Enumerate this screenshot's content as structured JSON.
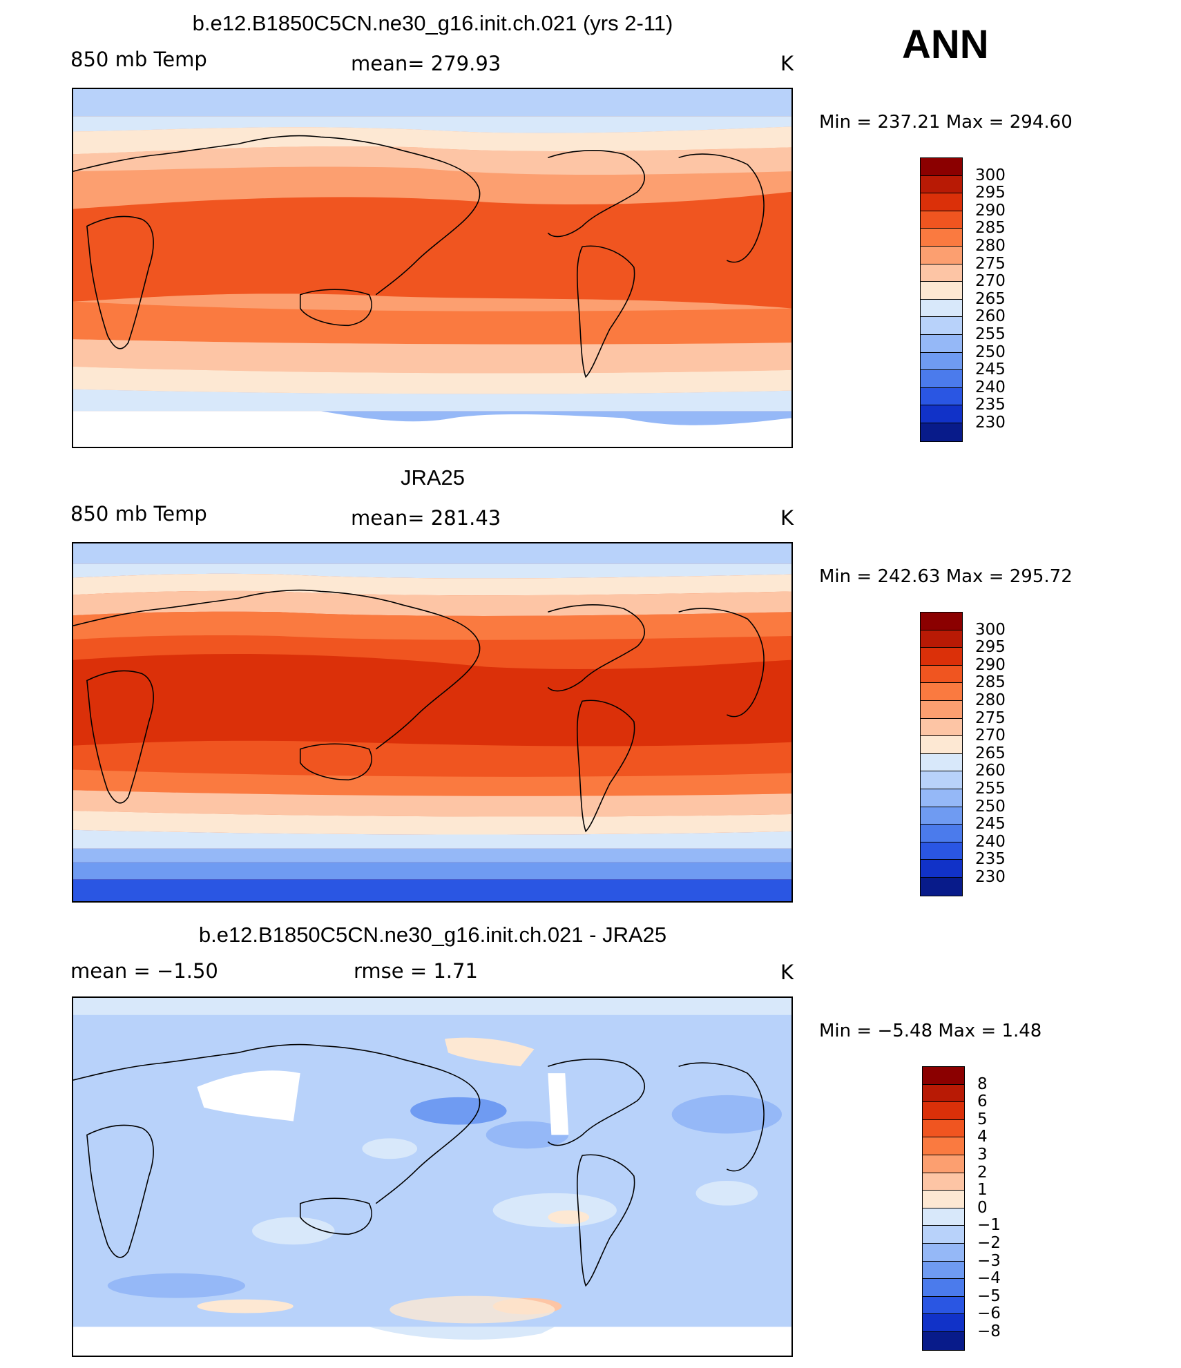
{
  "season": "ANN",
  "units": "K",
  "panels": [
    {
      "id": "model",
      "title": "b.e12.B1850C5CN.ne30_g16.init.ch.021 (yrs 2-11)",
      "left_label": "850 mb Temp",
      "center_label": "mean=  279.93",
      "right_label": "K",
      "min_max": "Min  =  237.21  Max  =  294.60",
      "levels": [
        "300",
        "295",
        "290",
        "285",
        "280",
        "275",
        "270",
        "265",
        "260",
        "255",
        "250",
        "245",
        "240",
        "235",
        "230"
      ],
      "colors": [
        "#8b0000",
        "#b81a05",
        "#db3009",
        "#f05520",
        "#fa7a40",
        "#fc9f70",
        "#fdc5a5",
        "#fde8d3",
        "#d8e8fa",
        "#b8d2fa",
        "#95b8f7",
        "#6f9bf2",
        "#4b7bec",
        "#2a56e3",
        "#1132c8",
        "#081b8a"
      ],
      "stats": {
        "mean": 279.93,
        "min": 237.21,
        "max": 294.6
      }
    },
    {
      "id": "obs",
      "title": "JRA25",
      "left_label": "850 mb Temp",
      "center_label": "mean=  281.43",
      "right_label": "K",
      "min_max": "Min  =  242.63  Max  =  295.72",
      "levels": [
        "300",
        "295",
        "290",
        "285",
        "280",
        "275",
        "270",
        "265",
        "260",
        "255",
        "250",
        "245",
        "240",
        "235",
        "230"
      ],
      "colors": [
        "#8b0000",
        "#b81a05",
        "#db3009",
        "#f05520",
        "#fa7a40",
        "#fc9f70",
        "#fdc5a5",
        "#fde8d3",
        "#d8e8fa",
        "#b8d2fa",
        "#95b8f7",
        "#6f9bf2",
        "#4b7bec",
        "#2a56e3",
        "#1132c8",
        "#081b8a"
      ],
      "stats": {
        "mean": 281.43,
        "min": 242.63,
        "max": 295.72
      }
    },
    {
      "id": "diff",
      "title": "b.e12.B1850C5CN.ne30_g16.init.ch.021 - JRA25",
      "left_label": "mean =    −1.50",
      "center_label": "rmse =     1.71",
      "right_label": "K",
      "min_max": "Min  =    −5.48  Max  =     1.48",
      "levels": [
        "8",
        "6",
        "5",
        "4",
        "3",
        "2",
        "1",
        "0",
        "−1",
        "−2",
        "−3",
        "−4",
        "−5",
        "−6",
        "−8"
      ],
      "colors": [
        "#8b0000",
        "#b81a05",
        "#db3009",
        "#f05520",
        "#fa7a40",
        "#fc9f70",
        "#fdc5a5",
        "#fde8d3",
        "#d8e8fa",
        "#b8d2fa",
        "#95b8f7",
        "#6f9bf2",
        "#4b7bec",
        "#2a56e3",
        "#1132c8",
        "#081b8a"
      ],
      "stats": {
        "mean": -1.5,
        "rmse": 1.71,
        "min": -5.48,
        "max": 1.48
      }
    }
  ]
}
